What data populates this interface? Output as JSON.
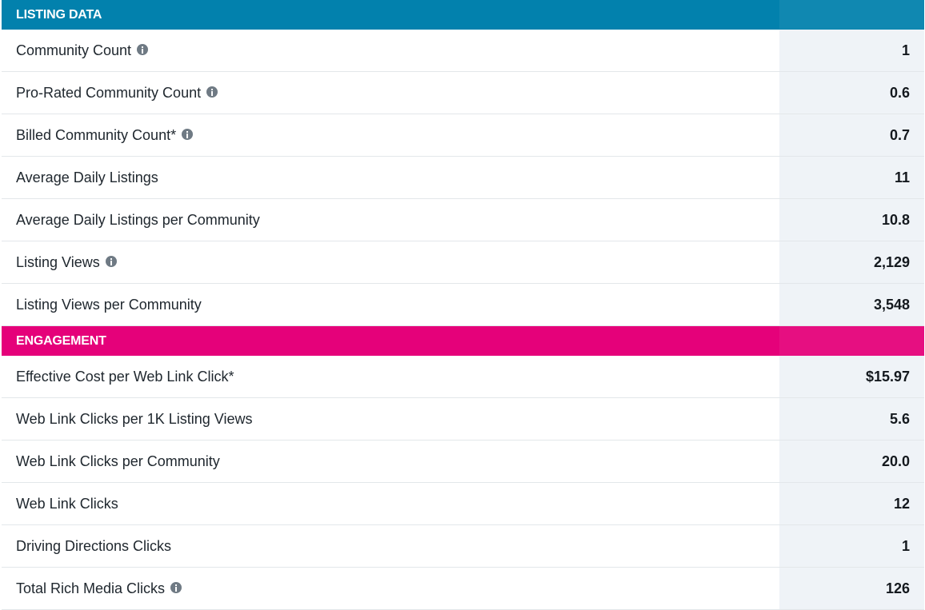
{
  "colors": {
    "listing_header_bg": "#0281ad",
    "engagement_header_bg": "#e5017a",
    "value_column_bg": "#eff3f7",
    "row_divider": "#e3e7ea",
    "info_icon": "#6f7a84"
  },
  "sections": [
    {
      "title": "LISTING DATA",
      "header_color": "#0281ad",
      "rows": [
        {
          "label": "Community Count",
          "value": "1",
          "icon": "info-icon"
        },
        {
          "label": "Pro-Rated Community Count",
          "value": "0.6",
          "icon": "info-icon"
        },
        {
          "label": "Billed Community Count*",
          "value": "0.7",
          "icon": "info-icon"
        },
        {
          "label": "Average Daily Listings",
          "value": "11",
          "icon": ""
        },
        {
          "label": "Average Daily Listings per Community",
          "value": "10.8",
          "icon": ""
        },
        {
          "label": "Listing Views",
          "value": "2,129",
          "icon": "info-icon"
        },
        {
          "label": "Listing Views per Community",
          "value": "3,548",
          "icon": ""
        }
      ]
    },
    {
      "title": "ENGAGEMENT",
      "header_color": "#e5017a",
      "rows": [
        {
          "label": "Effective Cost per Web Link Click*",
          "value": "$15.97",
          "icon": ""
        },
        {
          "label": "Web Link Clicks per 1K Listing Views",
          "value": "5.6",
          "icon": ""
        },
        {
          "label": "Web Link Clicks per Community",
          "value": "20.0",
          "icon": ""
        },
        {
          "label": "Web Link Clicks",
          "value": "12",
          "icon": ""
        },
        {
          "label": "Driving Directions Clicks",
          "value": "1",
          "icon": ""
        },
        {
          "label": "Total Rich Media Clicks",
          "value": "126",
          "icon": "info-icon"
        }
      ]
    }
  ]
}
